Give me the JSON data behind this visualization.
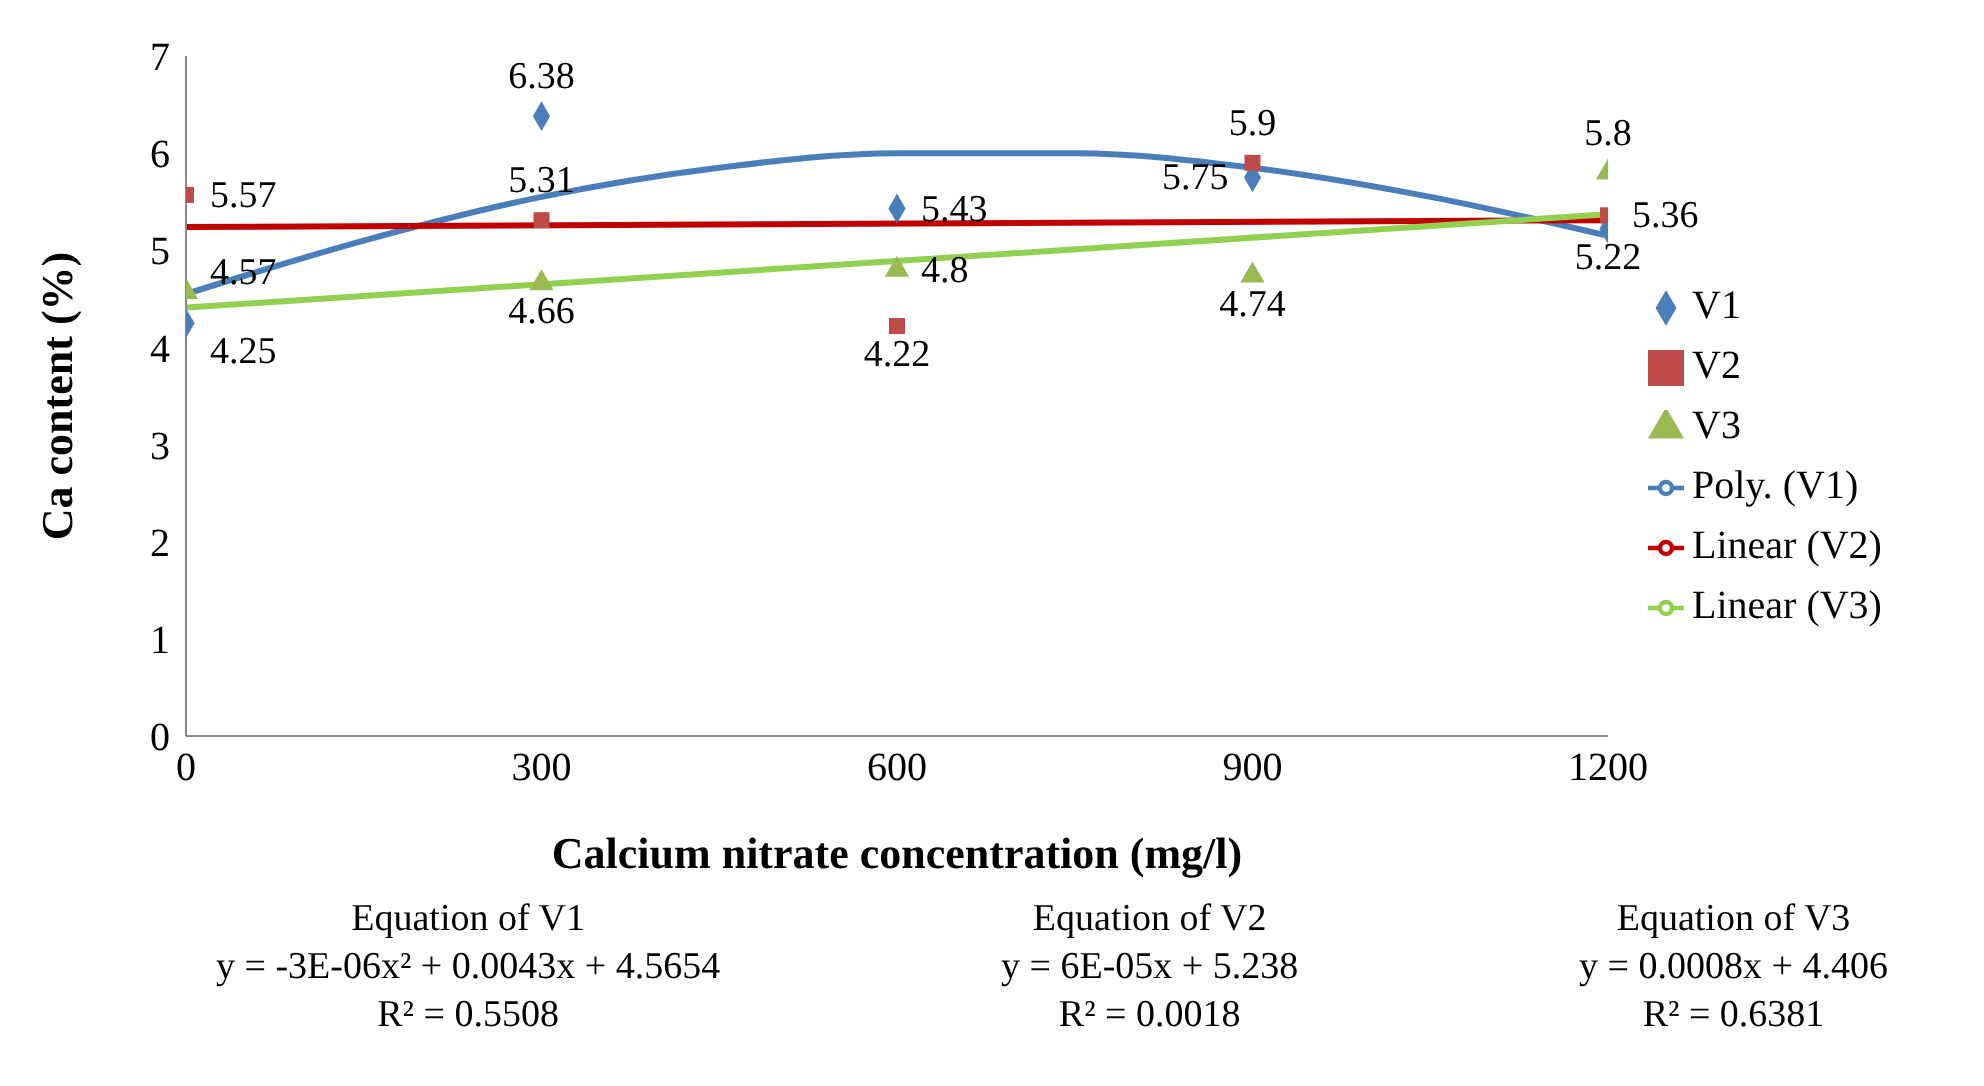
{
  "chart_data": {
    "type": "scatter",
    "xlabel": "Calcium nitrate concentration (mg/l)",
    "ylabel": "Ca content (%)",
    "xlim": [
      0,
      1200
    ],
    "xticks": [
      0,
      300,
      600,
      900,
      1200
    ],
    "ylim": [
      0,
      7
    ],
    "yticks": [
      0,
      1,
      2,
      3,
      4,
      5,
      6,
      7
    ],
    "grid": false,
    "legend": "right",
    "x": [
      0,
      300,
      600,
      900,
      1200
    ],
    "series": [
      {
        "name": "V1",
        "marker": "diamond",
        "color": "#4a7ebb",
        "values": [
          4.25,
          6.38,
          5.43,
          5.75,
          5.22
        ],
        "value_labels": [
          "4.25",
          "6.38",
          "5.43",
          "5.75",
          "5.22"
        ]
      },
      {
        "name": "V2",
        "marker": "square",
        "color": "#be4b48",
        "values": [
          5.57,
          5.31,
          4.22,
          5.9,
          5.36
        ],
        "value_labels": [
          "5.57",
          "5.31",
          "4.22",
          "5.9",
          "5.36"
        ]
      },
      {
        "name": "V3",
        "marker": "triangle",
        "color": "#98b954",
        "values": [
          4.57,
          4.66,
          4.8,
          4.74,
          5.8
        ],
        "value_labels": [
          "4.57",
          "4.66",
          "4.8",
          "4.74",
          "5.8"
        ]
      },
      {
        "name": "Poly. (V1)",
        "type": "line",
        "marker": "none",
        "color": "#4a7ebb",
        "x": [
          0,
          150,
          300,
          450,
          600,
          750,
          900,
          1050,
          1200
        ],
        "values": [
          4.55,
          5.1,
          5.55,
          5.85,
          6.0,
          6.0,
          5.85,
          5.55,
          5.15
        ]
      },
      {
        "name": "Linear (V2)",
        "type": "line",
        "marker": "none",
        "color": "#c00000",
        "x": [
          0,
          1200
        ],
        "values": [
          5.24,
          5.31
        ]
      },
      {
        "name": "Linear (V3)",
        "type": "line",
        "marker": "none",
        "color": "#92d050",
        "x": [
          0,
          1200
        ],
        "values": [
          4.41,
          5.37
        ]
      }
    ],
    "annotations": [
      "Equation of V1\ny = -3E-06x² + 0.0043x + 4.5654\nR² = 0.5508",
      "Equation of V2\ny = 6E-05x + 5.238\nR² = 0.0018",
      "Equation of V3\ny = 0.0008x + 4.406\nR² = 0.6381"
    ]
  }
}
